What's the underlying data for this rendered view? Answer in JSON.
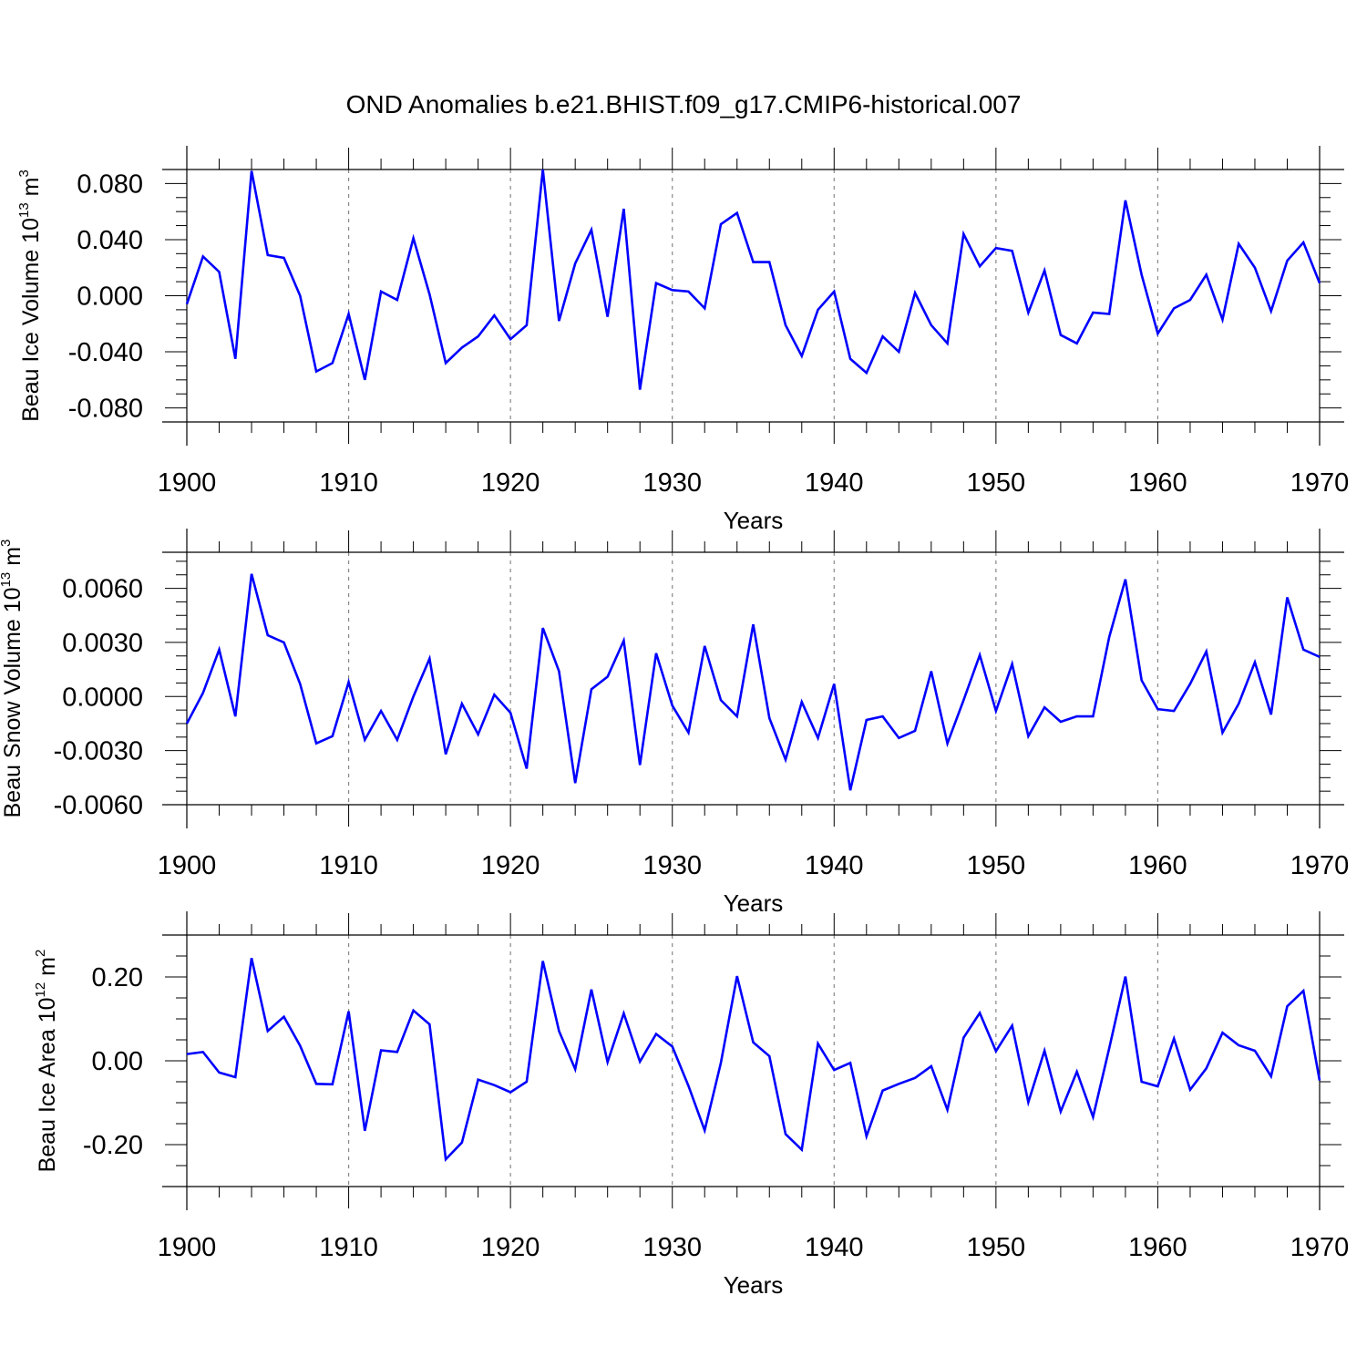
{
  "title": "OND Anomalies b.e21.BHIST.f09_g17.CMIP6-historical.007",
  "line_color": "#0000ff",
  "chart_data": [
    {
      "type": "line",
      "ylabel_main": "Beau Ice Volume 10",
      "ylabel_exp": "13",
      "ylabel_unit": " m",
      "ylabel_unit_exp": "3",
      "xlabel": "Years",
      "xlim": [
        1900,
        1970
      ],
      "ylim": [
        -0.09,
        0.09
      ],
      "xticks": [
        "1900",
        "1910",
        "1920",
        "1930",
        "1940",
        "1950",
        "1960",
        "1970"
      ],
      "yticks": [
        "-0.080",
        "-0.040",
        "0.000",
        "0.040",
        "0.080"
      ],
      "x_start": 1900,
      "values": [
        -0.006,
        0.028,
        0.017,
        -0.045,
        0.089,
        0.029,
        0.027,
        0.0,
        -0.054,
        -0.048,
        -0.013,
        -0.06,
        0.003,
        -0.003,
        0.041,
        0.001,
        -0.048,
        -0.037,
        -0.029,
        -0.014,
        -0.031,
        -0.021,
        0.09,
        -0.018,
        0.023,
        0.047,
        -0.015,
        0.062,
        -0.067,
        0.009,
        0.004,
        0.003,
        -0.009,
        0.051,
        0.059,
        0.024,
        0.024,
        -0.021,
        -0.043,
        -0.01,
        0.003,
        -0.045,
        -0.055,
        -0.029,
        -0.04,
        0.002,
        -0.021,
        -0.034,
        0.044,
        0.021,
        0.034,
        0.032,
        -0.012,
        0.018,
        -0.028,
        -0.034,
        -0.012,
        -0.013,
        0.068,
        0.015,
        -0.027,
        -0.009,
        -0.003,
        0.015,
        -0.017,
        0.037,
        0.02,
        -0.011,
        0.025,
        0.038,
        0.009
      ]
    },
    {
      "type": "line",
      "ylabel_main": "Beau Snow Volume 10",
      "ylabel_exp": "13",
      "ylabel_unit": " m",
      "ylabel_unit_exp": "3",
      "xlabel": "Years",
      "xlim": [
        1900,
        1970
      ],
      "ylim": [
        -0.006,
        0.008
      ],
      "xticks": [
        "1900",
        "1910",
        "1920",
        "1930",
        "1940",
        "1950",
        "1960",
        "1970"
      ],
      "yticks": [
        "-0.0060",
        "-0.0030",
        "0.0000",
        "0.0030",
        "0.0060"
      ],
      "x_start": 1900,
      "values": [
        -0.0015,
        0.0002,
        0.0026,
        -0.0011,
        0.0068,
        0.0034,
        0.003,
        0.0007,
        -0.0026,
        -0.0022,
        0.0008,
        -0.0024,
        -0.0008,
        -0.0024,
        0.0,
        0.0021,
        -0.0032,
        -0.0004,
        -0.0021,
        0.0001,
        -0.0009,
        -0.004,
        0.0038,
        0.0014,
        -0.0048,
        0.0004,
        0.0011,
        0.0031,
        -0.0038,
        0.0024,
        -0.0005,
        -0.002,
        0.0028,
        -0.0002,
        -0.0011,
        0.004,
        -0.0012,
        -0.0035,
        -0.0003,
        -0.0023,
        0.0007,
        -0.0052,
        -0.0013,
        -0.0011,
        -0.0023,
        -0.0019,
        0.0014,
        -0.0026,
        -0.0002,
        0.0023,
        -0.0008,
        0.0018,
        -0.0022,
        -0.0006,
        -0.0014,
        -0.0011,
        -0.0011,
        0.0033,
        0.0065,
        0.0009,
        -0.0007,
        -0.0008,
        0.0007,
        0.0025,
        -0.002,
        -0.0004,
        0.0019,
        -0.001,
        0.0055,
        0.0026,
        0.0022
      ]
    },
    {
      "type": "line",
      "ylabel_main": "Beau Ice Area 10",
      "ylabel_exp": "12",
      "ylabel_unit": " m",
      "ylabel_unit_exp": "2",
      "xlabel": "Years",
      "xlim": [
        1900,
        1970
      ],
      "ylim": [
        -0.3,
        0.3
      ],
      "xticks": [
        "1900",
        "1910",
        "1920",
        "1930",
        "1940",
        "1950",
        "1960",
        "1970"
      ],
      "yticks": [
        "-0.20",
        "0.00",
        "0.20"
      ],
      "x_start": 1900,
      "values": [
        0.016,
        0.021,
        -0.028,
        -0.039,
        0.245,
        0.071,
        0.105,
        0.036,
        -0.055,
        -0.056,
        0.118,
        -0.167,
        0.025,
        0.021,
        0.12,
        0.087,
        -0.235,
        -0.195,
        -0.045,
        -0.058,
        -0.075,
        -0.05,
        0.238,
        0.071,
        -0.02,
        0.17,
        -0.003,
        0.113,
        -0.002,
        0.064,
        0.034,
        -0.06,
        -0.166,
        -0.005,
        0.202,
        0.044,
        0.011,
        -0.175,
        -0.212,
        0.041,
        -0.022,
        -0.005,
        -0.18,
        -0.071,
        -0.055,
        -0.041,
        -0.013,
        -0.117,
        0.055,
        0.114,
        0.023,
        0.084,
        -0.099,
        0.024,
        -0.121,
        -0.026,
        -0.134,
        0.03,
        0.201,
        -0.05,
        -0.061,
        0.053,
        -0.069,
        -0.018,
        0.067,
        0.037,
        0.024,
        -0.037,
        0.13,
        0.167,
        -0.047
      ]
    }
  ]
}
